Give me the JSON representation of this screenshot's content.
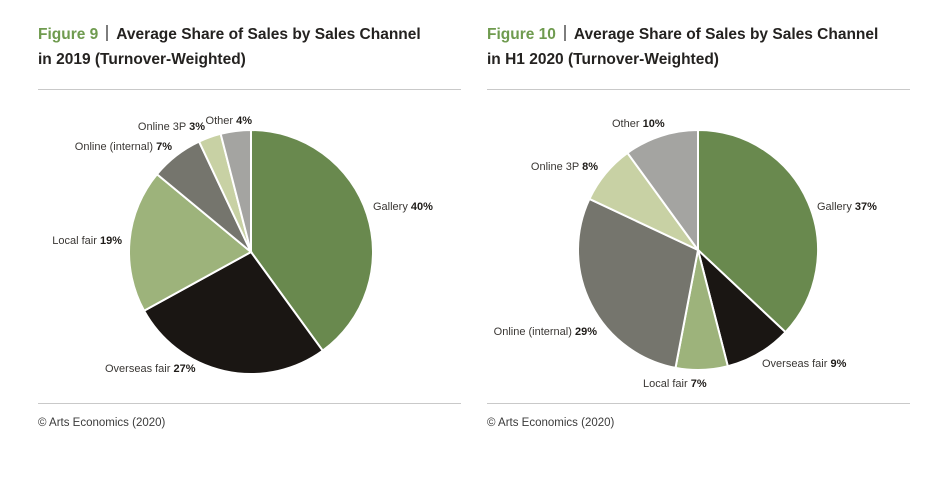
{
  "page": {
    "background": "#ffffff",
    "divider_color": "#c9c9c9",
    "accent_green": "#6f9b4f"
  },
  "chart_data": [
    {
      "type": "pie",
      "figure_label": "Figure 9",
      "title": "Figure 9 | Average Share of Sales by Sales Channel in 2019 (Turnover-Weighted)",
      "title_line1": "Average Share of Sales by Sales Channel",
      "title_line2": "in 2019 (Turnover-Weighted)",
      "unit": "%",
      "start_angle_deg": 0,
      "direction": "clockwise",
      "legend_position": "outside-labels",
      "slices": [
        {
          "label": "Gallery",
          "value": 40,
          "color": "#69894e"
        },
        {
          "label": "Overseas fair",
          "value": 27,
          "color": "#1a1613"
        },
        {
          "label": "Local fair",
          "value": 19,
          "color": "#9db37b"
        },
        {
          "label": "Online (internal)",
          "value": 7,
          "color": "#75756d"
        },
        {
          "label": "Online 3P",
          "value": 3,
          "color": "#c8d1a4"
        },
        {
          "label": "Other",
          "value": 4,
          "color": "#a4a4a1"
        }
      ],
      "source": "© Arts Economics (2020)"
    },
    {
      "type": "pie",
      "figure_label": "Figure 10",
      "title": "Figure 10 | Average Share of Sales by Sales Channel in H1 2020 (Turnover-Weighted)",
      "title_line1": "Average Share of Sales by Sales Channel",
      "title_line2": "in H1 2020 (Turnover-Weighted)",
      "unit": "%",
      "start_angle_deg": 0,
      "direction": "clockwise",
      "legend_position": "outside-labels",
      "slices": [
        {
          "label": "Gallery",
          "value": 37,
          "color": "#69894e"
        },
        {
          "label": "Overseas fair",
          "value": 9,
          "color": "#1a1613"
        },
        {
          "label": "Local fair",
          "value": 7,
          "color": "#9db37b"
        },
        {
          "label": "Online (internal)",
          "value": 29,
          "color": "#75756d"
        },
        {
          "label": "Online 3P",
          "value": 8,
          "color": "#c8d1a4"
        },
        {
          "label": "Other",
          "value": 10,
          "color": "#a4a4a1"
        }
      ],
      "source": "© Arts Economics (2020)"
    }
  ]
}
